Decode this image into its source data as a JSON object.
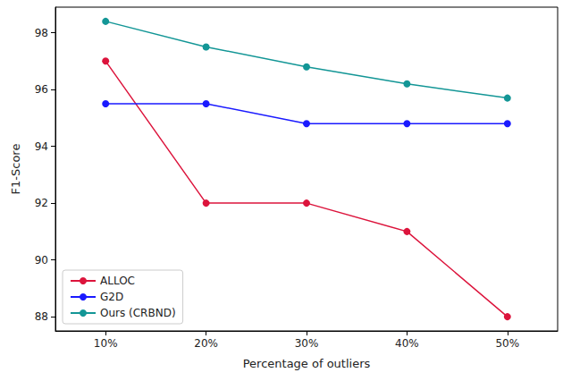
{
  "chart_data": {
    "type": "line",
    "x_label": "Percentage of outliers",
    "y_label": "F1-Score",
    "categories": [
      "10%",
      "20%",
      "30%",
      "40%",
      "50%"
    ],
    "series": [
      {
        "name": "ALLOC",
        "color": "#dc143c",
        "values": [
          97,
          92,
          92,
          91,
          88
        ]
      },
      {
        "name": "G2D",
        "color": "#1a1aff",
        "values": [
          95.5,
          95.5,
          94.8,
          94.8,
          94.8
        ]
      },
      {
        "name": "Ours (CRBND)",
        "color": "#139696",
        "values": [
          98.4,
          97.5,
          96.8,
          96.2,
          95.7
        ]
      }
    ],
    "ylim": [
      87.5,
      98.9
    ],
    "yticks": [
      88,
      90,
      92,
      94,
      96,
      98
    ],
    "grid": false,
    "legend": "lower left",
    "marker": "circle"
  }
}
